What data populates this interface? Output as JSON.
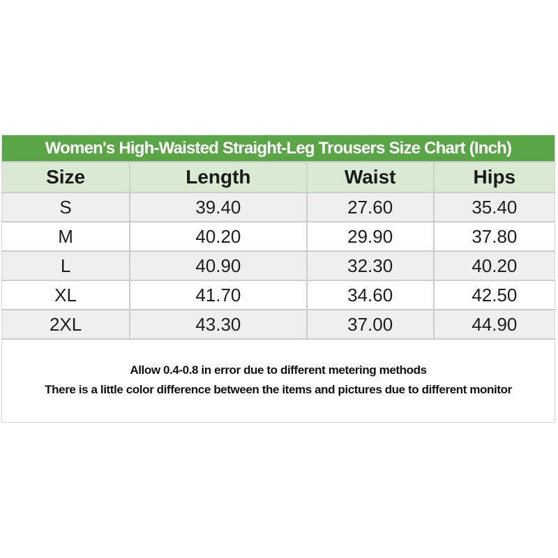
{
  "chart_data": {
    "type": "table",
    "title": "Women's High-Waisted Straight-Leg Trousers Size Chart (Inch)",
    "unit": "Inch",
    "columns": [
      "Size",
      "Length",
      "Waist",
      "Hips"
    ],
    "rows": [
      [
        "S",
        "39.40",
        "27.60",
        "35.40"
      ],
      [
        "M",
        "40.20",
        "29.90",
        "37.80"
      ],
      [
        "L",
        "40.90",
        "32.30",
        "40.20"
      ],
      [
        "XL",
        "41.70",
        "34.60",
        "42.50"
      ],
      [
        "2XL",
        "43.30",
        "37.00",
        "44.90"
      ]
    ],
    "notes": [
      "Allow 0.4-0.8 in error due to different metering methods",
      "There is a little color difference between the items and pictures due to different monitor"
    ],
    "layout_hints": {
      "header_band_color": "#5aa647",
      "column_header_color": "#d9e9d2",
      "alt_row_color": "#efefef",
      "border_color": "#cccccc",
      "title_text_color": "#ffffff",
      "body_text_color": "#1d1d1d"
    }
  }
}
